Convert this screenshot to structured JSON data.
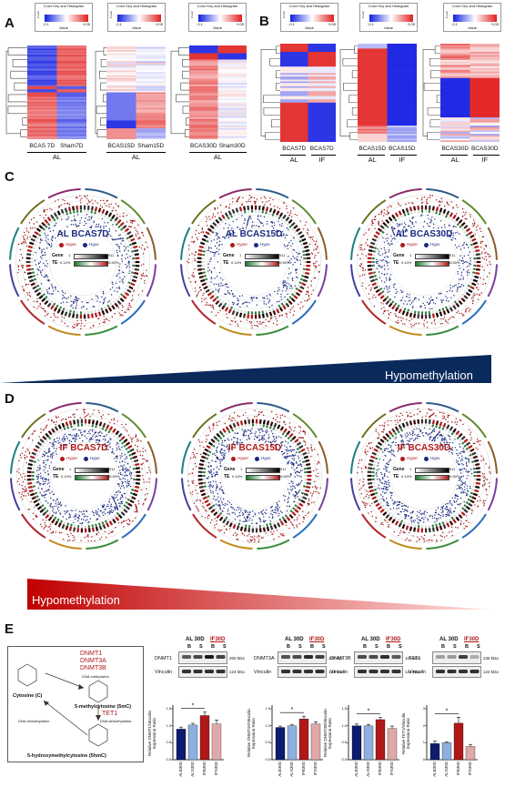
{
  "panels": {
    "A": "A",
    "B": "B",
    "C": "C",
    "D": "D",
    "E": "E"
  },
  "color_key": {
    "title": "Color Key\nand Histogram",
    "value_label": "Value",
    "ticks": [
      "-0.1",
      "0.05"
    ],
    "y_label": "Count"
  },
  "panel_a": {
    "maps": [
      {
        "cols": [
          "BCAS 7D",
          "Sham7D"
        ],
        "group": "AL"
      },
      {
        "cols": [
          "BCAS15D",
          "Sham15D"
        ],
        "group": "AL"
      },
      {
        "cols": [
          "BCAS30D",
          "Sham30D"
        ],
        "group": "AL"
      }
    ]
  },
  "panel_b": {
    "maps": [
      {
        "cols": [
          "BCAS7D",
          "BCAS7D"
        ],
        "groups": [
          "AL",
          "IF"
        ]
      },
      {
        "cols": [
          "BCAS15D",
          "BCAS15D"
        ],
        "groups": [
          "AL",
          "IF"
        ]
      },
      {
        "cols": [
          "BCAS30D",
          "BCAS30D"
        ],
        "groups": [
          "AL",
          "IF"
        ]
      }
    ]
  },
  "panel_c": {
    "plots": [
      {
        "title": "AL BCAS7D"
      },
      {
        "title": "AL BCAS15D"
      },
      {
        "title": "AL BCAS30D"
      }
    ],
    "legend": {
      "hyper": "Hyper",
      "hypo": "Hypo",
      "gene": "Gene",
      "te": "TE",
      "gene_min": "1",
      "gene_max": "911",
      "te_min": "0.14%",
      "te_max": "66.50%"
    },
    "banner": "Hypomethylation",
    "colors": {
      "banner": "#0b2a5c"
    }
  },
  "panel_d": {
    "plots": [
      {
        "title": "IF BCAS7D"
      },
      {
        "title": "IF BCAS15D"
      },
      {
        "title": "IF BCAS30D"
      }
    ],
    "legend": {
      "hyper": "Hyper",
      "hypo": "Hypo",
      "gene": "Gene",
      "te": "TE",
      "gene_min": "1",
      "gene_max": "911",
      "te_min": "0.14%",
      "te_max": "66.50%"
    },
    "banner": "Hypomethylation",
    "colors": {
      "banner": "#c00000"
    }
  },
  "panel_e": {
    "diagram": {
      "enzymes1": [
        "DNMT1",
        "DNMT3A",
        "DNMT3B"
      ],
      "dna_methylation": "DNA methylation",
      "cytosine": "Cytosine (C)",
      "mc": "5-methylcytosine (5mC)",
      "tet": "TET1",
      "dna_demethylation": "DNA demethylation",
      "dna_demethylation2": "DNA demethylation",
      "hmc": "5-hydroxymethylcytosine (5hmC)"
    },
    "blots": [
      {
        "protein": "DNMT1",
        "kda": "200 kDa",
        "vinculin": "Vinculin",
        "vkda": "124 kDa",
        "ylabel": "Relative DNMT1/Vinculin Expression Ratio",
        "values": [
          0.9,
          1.02,
          1.3,
          1.05
        ],
        "errors": [
          0.06,
          0.05,
          0.1,
          0.12
        ],
        "ymax": 1.5,
        "yticks": [
          "0.0",
          "0.5",
          "1.0",
          "1.5"
        ]
      },
      {
        "protein": "DNMT3A",
        "kda": "130 kDa",
        "vinculin": "Vinculin",
        "vkda": "124 kDa",
        "ylabel": "Relative DNMT3A/Vinculin Expression Ratio",
        "values": [
          0.95,
          1.0,
          1.2,
          1.05
        ],
        "errors": [
          0.04,
          0.04,
          0.08,
          0.07
        ],
        "ymax": 1.5,
        "yticks": [
          "0.0",
          "0.5",
          "1.0",
          "1.5"
        ]
      },
      {
        "protein": "DNMT3B",
        "kda": "105 kDa",
        "vinculin": "Vinculin",
        "vkda": "124 kDa",
        "ylabel": "Relative DNMT3B/Vinculin Expression Ratio",
        "values": [
          1.0,
          1.0,
          1.18,
          0.92
        ],
        "errors": [
          0.05,
          0.04,
          0.06,
          0.07
        ],
        "ymax": 1.5,
        "yticks": [
          "0.0",
          "0.5",
          "1.0",
          "1.5"
        ]
      },
      {
        "protein": "TET1",
        "kda": "235 kDa",
        "vinculin": "Vinculin",
        "vkda": "124 kDa",
        "ylabel": "Relative TET1/Vinculin Expression Ratio",
        "values": [
          0.95,
          1.0,
          2.15,
          0.78
        ],
        "errors": [
          0.15,
          0.05,
          0.35,
          0.12
        ],
        "ymax": 3,
        "yticks": [
          "0",
          "1",
          "2",
          "3"
        ]
      }
    ],
    "header": {
      "al": "AL 30D",
      "if": "IF30D",
      "b": "B",
      "s": "S"
    },
    "xcats": [
      "ALB30D",
      "ALS30D",
      "IFB30D",
      "IFS30D"
    ],
    "star": "*",
    "colors": {
      "c1": "#0d1b6e",
      "c2": "#8fb0de",
      "c3": "#b01818",
      "c4": "#e0a9a9"
    }
  }
}
